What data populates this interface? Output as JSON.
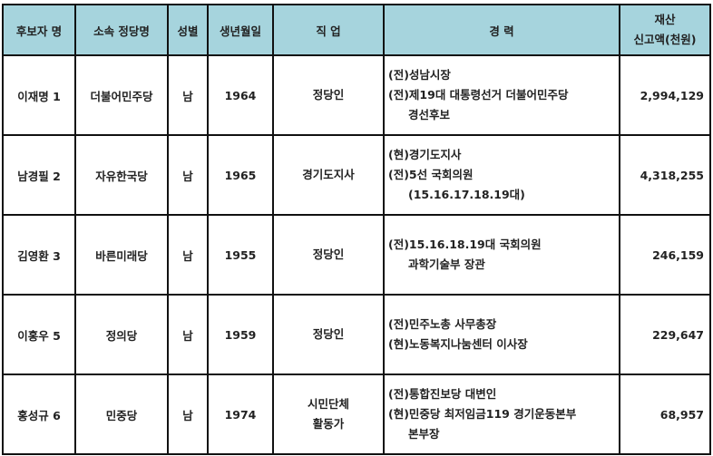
{
  "headers": [
    "후보자 명",
    "소속 정당명",
    "성별",
    "생년월일",
    "직 업",
    "경 력",
    "재산",
    "신고액(천원)"
  ],
  "rows": [
    {
      "name": "이재명 1",
      "party": "더불어민주당",
      "gender": "남",
      "birth": "1964",
      "job": [
        "정당인"
      ],
      "career": [
        "(전)성남시장",
        "(전)제19대 대통령선거 더불어민주당",
        "경선후보"
      ],
      "asset": "2,994,129"
    },
    {
      "name": "남경필 2",
      "party": "자유한국당",
      "gender": "남",
      "birth": "1965",
      "job": [
        "경기도지사"
      ],
      "career": [
        "(현)경기도지사",
        "(전)5선 국회의원",
        "(15.16.17.18.19대)"
      ],
      "asset": "4,318,255"
    },
    {
      "name": "김영환 3",
      "party": "바른미래당",
      "gender": "남",
      "birth": "1955",
      "job": [
        "정당인"
      ],
      "career": [
        "(전)15.16.18.19대 국회의원",
        "과학기술부 장관"
      ],
      "asset": "246,159"
    },
    {
      "name": "이홍우 5",
      "party": "정의당",
      "gender": "남",
      "birth": "1959",
      "job": [
        "정당인"
      ],
      "career": [
        "(전)민주노총 사무총장",
        "(현)노동복지나눔센터 이사장"
      ],
      "asset": "229,647"
    },
    {
      "name": "홍성규 6",
      "party": "민중당",
      "gender": "남",
      "birth": "1974",
      "job": [
        "시민단체",
        "활동가"
      ],
      "career": [
        "(전)통합진보당 대변인",
        "(현)민중당 최저임금119 경기운동본부",
        "본부장"
      ],
      "asset": "68,957"
    }
  ],
  "colors": {
    "header_bg": "#a6d4dd",
    "border": "#111111"
  }
}
